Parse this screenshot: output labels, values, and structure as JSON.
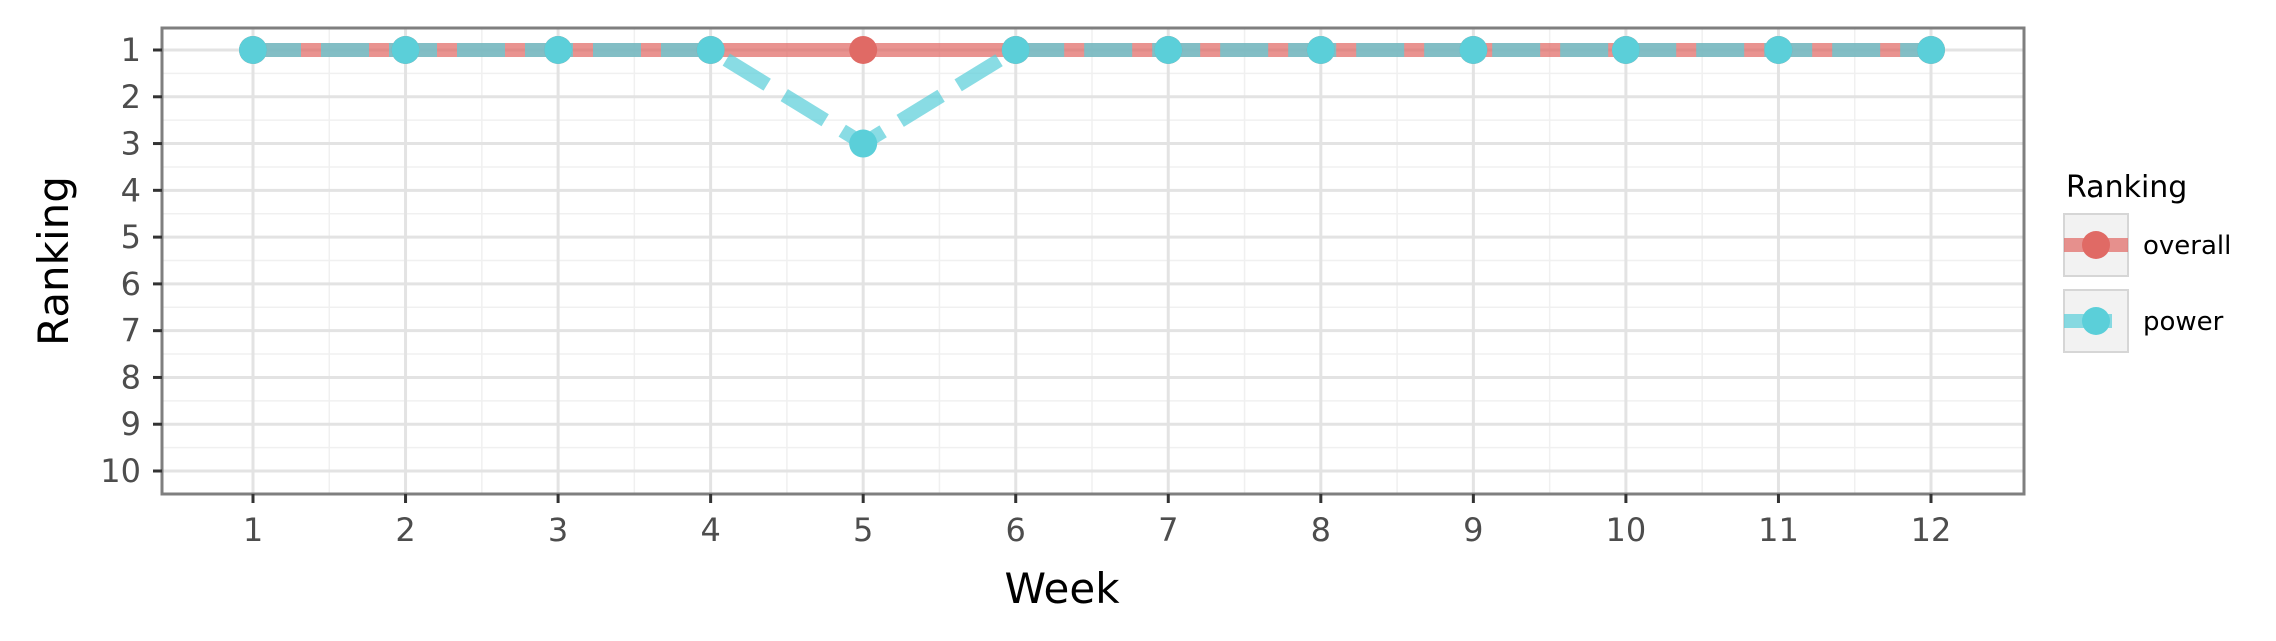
{
  "chart_data": {
    "type": "line",
    "title": "",
    "xlabel": "Week",
    "ylabel": "Ranking",
    "x": [
      1,
      2,
      3,
      4,
      5,
      6,
      7,
      8,
      9,
      10,
      11,
      12
    ],
    "xlim": [
      1,
      12
    ],
    "ylim": [
      1,
      10
    ],
    "y_reversed": true,
    "y_ticks": [
      1,
      2,
      3,
      4,
      5,
      6,
      7,
      8,
      9,
      10
    ],
    "grid": true,
    "legend": {
      "title": "Ranking",
      "placement": "right"
    },
    "series": [
      {
        "name": "overall",
        "color": "#E06A65",
        "line_style": "solid",
        "values": [
          1,
          1,
          1,
          1,
          1,
          1,
          1,
          1,
          1,
          1,
          1,
          1
        ]
      },
      {
        "name": "power",
        "color": "#5BCFD9",
        "line_style": "dashed",
        "values": [
          1,
          1,
          1,
          1,
          3,
          1,
          1,
          1,
          1,
          1,
          1,
          1
        ]
      }
    ]
  }
}
